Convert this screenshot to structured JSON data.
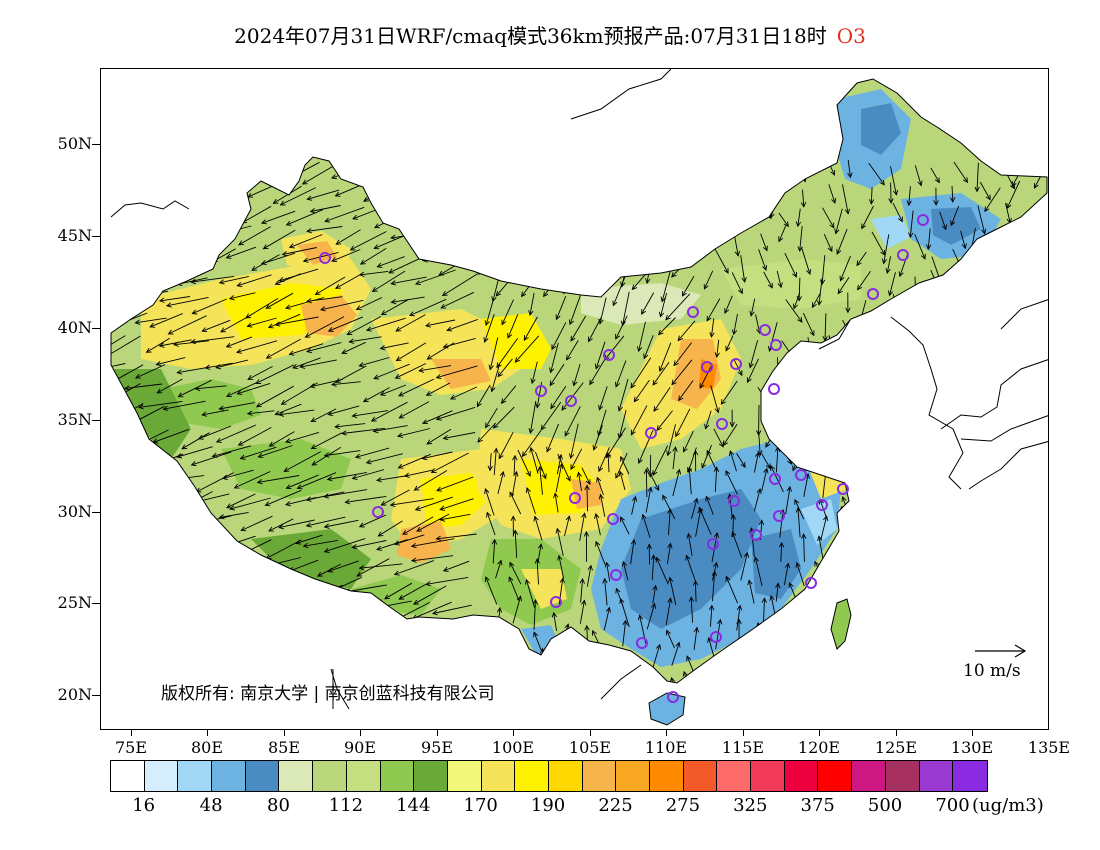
{
  "title": {
    "main": "2024年07月31日WRF/cmaq模式36km预报产品:07月31日18时",
    "species": "O3"
  },
  "map": {
    "lat_labels": [
      "50N",
      "45N",
      "40N",
      "35N",
      "30N",
      "25N",
      "20N"
    ],
    "lon_labels": [
      "75E",
      "80E",
      "85E",
      "90E",
      "95E",
      "100E",
      "105E",
      "110E",
      "115E",
      "120E",
      "125E",
      "130E",
      "135E"
    ],
    "copyright": "版权所有: 南京大学 | 南京创蓝科技有限公司",
    "wind_reference": "10 m/s"
  },
  "legend": {
    "colors": [
      "#ffffff",
      "#d6efff",
      "#a0d8f5",
      "#6db3e1",
      "#4a8cc2",
      "#dbe8b8",
      "#b9d77a",
      "#c3df80",
      "#8fc950",
      "#6aa838",
      "#f1f87a",
      "#f5e45a",
      "#fff200",
      "#ffd800",
      "#f7b44c",
      "#f9a824",
      "#ff8a00",
      "#f25a2a",
      "#ff6a6a",
      "#f43a5a",
      "#ee0040",
      "#ff0000",
      "#cc1880",
      "#a63060",
      "#9a38d2",
      "#8a2be2"
    ],
    "labels": [
      "16",
      "48",
      "80",
      "112",
      "144",
      "170",
      "190",
      "225",
      "275",
      "325",
      "375",
      "500",
      "700"
    ],
    "unit": "(ug/m3)"
  }
}
